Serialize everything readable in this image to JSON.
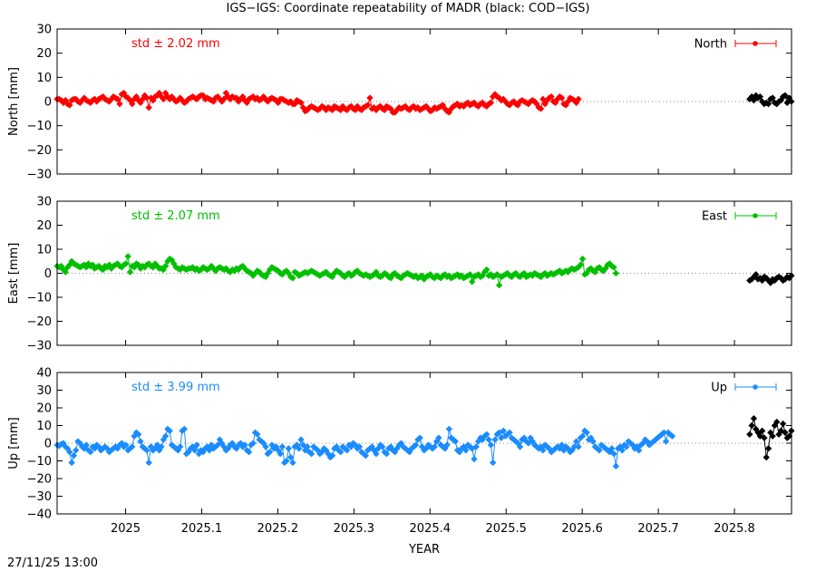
{
  "title": "IGS−IGS: Coordinate repeatability of MADR (black: COD−IGS)",
  "footer_timestamp": "27/11/25 13:00",
  "colors": {
    "north": "#ff0000",
    "east": "#00c000",
    "up": "#1a8cff",
    "compare": "#000000",
    "zero_line": "#888888"
  },
  "chart_data": [
    {
      "type": "line",
      "component": "North",
      "legend_label": "North",
      "legend_position": "top-right",
      "std_label": "std ± 2.02 mm",
      "ylabel": "North [mm]",
      "xlabel": "",
      "ylim": [
        -30,
        30
      ],
      "yticks": [
        30,
        20,
        10,
        0,
        -10,
        -20,
        -30
      ],
      "ytick_labels": [
        "30",
        "20",
        "10",
        "0",
        "−10",
        "−20",
        "−30"
      ],
      "xlim": [
        2024.91,
        2025.875
      ],
      "zero_line": true,
      "error_bars": true,
      "series": [
        {
          "name": "North",
          "color": "#ff0000",
          "x_start": 2024.91,
          "x_step": 0.00274,
          "values": [
            1,
            1,
            0.5,
            -0.5,
            0.5,
            -1,
            -1.5,
            0.5,
            1,
            1,
            0,
            -0.5,
            0.5,
            1.5,
            0.5,
            0,
            -0.5,
            0.5,
            1,
            0,
            1,
            1.5,
            2,
            1,
            0.5,
            0,
            1,
            2,
            1.5,
            1,
            -1,
            3,
            3.5,
            2,
            1.5,
            0.5,
            -1,
            1,
            2,
            0.5,
            -0.5,
            1,
            2.5,
            1.5,
            -2.5,
            1.5,
            0.5,
            2,
            2.5,
            3.5,
            2,
            1,
            3.5,
            2,
            1,
            2,
            1,
            0,
            0.5,
            1.5,
            0.5,
            -0.5,
            0,
            1,
            1.5,
            2,
            1.5,
            1,
            2,
            2.5,
            2.5,
            1,
            1.5,
            1,
            0.5,
            0,
            1.5,
            2,
            1,
            0,
            1,
            3.5,
            2,
            1,
            2,
            1.5,
            1.5,
            0,
            1,
            2,
            0.5,
            -0.5,
            1,
            1.5,
            2,
            1,
            1.5,
            0.5,
            1,
            2,
            1,
            0,
            1,
            1.5,
            1,
            0.5,
            -0.5,
            1,
            1,
            0.5,
            0,
            -0.5,
            0,
            -1,
            -1,
            0.5,
            0,
            -0.5,
            -2.5,
            -4,
            -3.5,
            -2.5,
            -2,
            -2.5,
            -3,
            -3.5,
            -3,
            -2,
            -2.5,
            -3.5,
            -2.5,
            -3,
            -3.5,
            -2,
            -2.5,
            -3,
            -3.5,
            -2,
            -3,
            -3.5,
            -2.5,
            -2,
            -3,
            -3.5,
            -2,
            -3,
            -3.5,
            -2.5,
            -2,
            -1.5,
            1.5,
            -3,
            -2.5,
            -3.5,
            -2.5,
            -2,
            -3,
            -3.5,
            -2,
            -2.5,
            -3,
            -4.5,
            -4.5,
            -3.5,
            -2.5,
            -3,
            -2.5,
            -2,
            -3,
            -3.5,
            -2.5,
            -2,
            -3,
            -2.5,
            -3.5,
            -3,
            -2.5,
            -2,
            -3,
            -4,
            -3.5,
            -2.5,
            -3,
            -2.5,
            -2,
            -1.5,
            -3,
            -4,
            -4.5,
            -3,
            -2,
            -1.5,
            -1,
            -2,
            -1.5,
            -2,
            -1,
            -0.5,
            -1.5,
            -1,
            -0.5,
            -1.5,
            -2,
            -1,
            -0.5,
            -1.5,
            -2,
            -1,
            -0.5,
            2,
            3,
            2,
            1.5,
            0.5,
            1,
            0,
            -1,
            -1.5,
            -0.5,
            0,
            -1,
            -1.5,
            0,
            0.5,
            0,
            -0.5,
            -1,
            0,
            0.5,
            0,
            -1,
            -2.5,
            -3,
            1,
            -1,
            0.5,
            1.5,
            2,
            0,
            -0.5,
            1,
            2,
            1.5,
            -1,
            -1.5,
            0,
            1.5,
            1,
            0.5,
            -0.5,
            1
          ]
        },
        {
          "name": "COD−IGS",
          "color": "#000000",
          "x_start": 2025.82,
          "x_step": 0.00274,
          "values": [
            1,
            2,
            0.5,
            2.5,
            1.5,
            2,
            0,
            -1,
            -0.5,
            -1,
            1,
            1.5,
            -0.5,
            -1,
            0,
            0.5,
            2,
            2.5,
            -0.5,
            1.5,
            0
          ]
        }
      ]
    },
    {
      "type": "line",
      "component": "East",
      "legend_label": "East",
      "legend_position": "top-right",
      "std_label": "std ± 2.07 mm",
      "ylabel": "East [mm]",
      "xlabel": "",
      "ylim": [
        -30,
        30
      ],
      "yticks": [
        30,
        20,
        10,
        0,
        -10,
        -20,
        -30
      ],
      "ytick_labels": [
        "30",
        "20",
        "10",
        "0",
        "−10",
        "−20",
        "−30"
      ],
      "xlim": [
        2024.91,
        2025.875
      ],
      "zero_line": true,
      "error_bars": true,
      "series": [
        {
          "name": "East",
          "color": "#00c000",
          "x_start": 2024.91,
          "x_step": 0.00274,
          "values": [
            3,
            2.5,
            3,
            1.5,
            0.5,
            2.5,
            3.5,
            5,
            4,
            3.5,
            3,
            2.5,
            3,
            3.5,
            2.5,
            4,
            3,
            3.5,
            2,
            2.5,
            3,
            2,
            1.5,
            3,
            2.5,
            3.5,
            2,
            3,
            3.5,
            4,
            3,
            2.5,
            3.5,
            4,
            7,
            0.5,
            3,
            2.5,
            4,
            3.5,
            2,
            3,
            2.5,
            3.5,
            4,
            3,
            2.5,
            4,
            3,
            2,
            2,
            1.5,
            3,
            5,
            6,
            5.5,
            4,
            2.5,
            2,
            1.5,
            2.5,
            2,
            1.5,
            2,
            2,
            2.5,
            1.5,
            2,
            1,
            1.5,
            2.5,
            2,
            1.5,
            2,
            3,
            2,
            1,
            2,
            2.5,
            2,
            1.5,
            2,
            1,
            0.5,
            1.5,
            1,
            2,
            1.5,
            2.5,
            3,
            2,
            1,
            0.5,
            0,
            -1,
            0,
            1,
            0.5,
            -0.5,
            -1,
            -1.5,
            0,
            1.5,
            2.5,
            2,
            1.5,
            1,
            0,
            -0.5,
            0.5,
            1,
            0,
            -1.5,
            -2,
            0.5,
            0,
            -1,
            -0.5,
            0,
            0.5,
            0,
            0.5,
            1,
            0.5,
            0,
            -0.5,
            -1,
            -0.5,
            0,
            0.5,
            -0.5,
            -1,
            -1.5,
            0,
            1,
            0.5,
            0,
            -1,
            -1.5,
            -0.5,
            0,
            -1,
            -0.5,
            0.5,
            1,
            0,
            -0.5,
            -1,
            -0.5,
            -1,
            -1.5,
            -1,
            -0.5,
            0.5,
            -1,
            -1.5,
            -1,
            0,
            -0.5,
            -1.5,
            -2,
            -0.5,
            0,
            -1,
            -1.5,
            -2,
            -1,
            -0.5,
            0,
            -0.5,
            -1,
            -1.5,
            -1,
            -2,
            -1.5,
            -1,
            -2.5,
            -1.5,
            -1,
            -0.5,
            -1.5,
            -2,
            -1,
            -1.5,
            -2,
            -1,
            -0.5,
            -1.5,
            -1,
            -2,
            -1.5,
            -1,
            -0.5,
            -1.5,
            -1,
            -2,
            -1.5,
            -1,
            -0.5,
            -3.5,
            -1.5,
            -1,
            -0.5,
            -1.5,
            -1,
            0.5,
            1.5,
            -1,
            -0.5,
            -1.5,
            -1,
            -0.5,
            -5,
            -1.5,
            -1,
            -0.5,
            0,
            -1,
            -1.5,
            -0.5,
            0,
            -1,
            -1.5,
            -0.5,
            0,
            -1.5,
            -1,
            -0.5,
            -1,
            0,
            -0.5,
            -1,
            -1.5,
            -0.5,
            0,
            -1,
            -0.5,
            0,
            -0.5,
            0,
            0.5,
            1,
            0,
            0.5,
            1,
            0.5,
            1.5,
            2,
            1.5,
            2,
            2.5,
            3.5,
            6,
            -0.5,
            0,
            1.5,
            2,
            1,
            0.5,
            2,
            2.5,
            1.5,
            1,
            2,
            3.5,
            4,
            3,
            2.5,
            0
          ]
        },
        {
          "name": "COD−IGS",
          "color": "#000000",
          "x_start": 2025.82,
          "x_step": 0.00274,
          "values": [
            -3,
            -2.5,
            -1.5,
            -0.5,
            -2.5,
            -2,
            -3,
            -1.5,
            -2,
            -3,
            -4,
            -2.5,
            -3,
            -2,
            -1.5,
            -2,
            -3,
            -2.5,
            -1.5,
            -2,
            -1
          ]
        }
      ]
    },
    {
      "type": "line",
      "component": "Up",
      "legend_label": "Up",
      "legend_position": "top-right",
      "std_label": "std ± 3.99 mm",
      "ylabel": "Up [mm]",
      "xlabel": "YEAR",
      "ylim": [
        -40,
        40
      ],
      "yticks": [
        40,
        30,
        20,
        10,
        0,
        -10,
        -20,
        -30,
        -40
      ],
      "ytick_labels": [
        "40",
        "30",
        "20",
        "10",
        "0",
        "−10",
        "−20",
        "−30",
        "−40"
      ],
      "xlim": [
        2024.91,
        2025.875
      ],
      "xticks": [
        2025,
        2025.1,
        2025.2,
        2025.3,
        2025.4,
        2025.5,
        2025.6,
        2025.7,
        2025.8
      ],
      "xtick_labels": [
        "2025",
        "2025.1",
        "2025.2",
        "2025.3",
        "2025.4",
        "2025.5",
        "2025.6",
        "2025.7",
        "2025.8"
      ],
      "zero_line": true,
      "error_bars": true,
      "series": [
        {
          "name": "Up",
          "color": "#1a8cff",
          "x_start": 2024.91,
          "x_step": 0.00274,
          "values": [
            -1,
            -1.5,
            -0.5,
            0,
            -2,
            -3,
            -5,
            -11,
            -7,
            -4,
            1,
            0,
            -2,
            -3,
            -1,
            -4,
            -5,
            -2,
            -3,
            -1,
            -2,
            -4,
            -3,
            -2,
            -3,
            -5,
            -4,
            -3,
            -2,
            -3,
            -1,
            0,
            -2,
            -1,
            -4,
            -3,
            -2,
            4,
            6,
            5,
            1,
            -2,
            -3,
            -4,
            -11,
            -2,
            -4,
            -3,
            -1,
            -4,
            -2,
            2,
            4,
            8,
            7,
            -1,
            -2,
            -3,
            -4,
            -2,
            7,
            8,
            -6,
            -5,
            -3,
            -2,
            -4,
            -1,
            -6,
            -4,
            -5,
            -3,
            -2,
            -4,
            -1,
            -3,
            -2,
            -1,
            2,
            0,
            -2,
            -4,
            -3,
            -1,
            0,
            -2,
            -3,
            -1,
            0,
            -2,
            -1,
            -4,
            -5,
            -1,
            0,
            6,
            5,
            2,
            1,
            0,
            -2,
            -6,
            -5,
            -1,
            -3,
            -2,
            -4,
            -6,
            -2,
            -11,
            -10,
            -3,
            -8,
            -11,
            -2,
            -1,
            -3,
            2,
            -1,
            -4,
            -2,
            -5,
            -6,
            -2,
            -3,
            -4,
            -6,
            -5,
            -3,
            -4,
            -6,
            -8,
            -7,
            -3,
            -2,
            -4,
            -5,
            -2,
            -3,
            -4,
            -1,
            -2,
            0,
            -1,
            -3,
            -2,
            -5,
            -6,
            -7,
            -4,
            -3,
            -2,
            -4,
            -6,
            -3,
            -1,
            -2,
            -5,
            -6,
            -3,
            -2,
            -4,
            -5,
            -3,
            -1,
            0,
            -2,
            -3,
            -4,
            -5,
            -3,
            -2,
            -1,
            2,
            3,
            -2,
            -4,
            -3,
            -1,
            -2,
            -3,
            -2,
            1,
            3,
            -1,
            -2,
            -3,
            -1,
            8,
            3,
            2,
            1,
            -4,
            -5,
            -3,
            -2,
            -4,
            -1,
            -2,
            -3,
            -9,
            -2,
            1,
            3,
            2,
            4,
            5,
            2,
            -1,
            -11,
            2,
            5,
            6,
            3,
            7,
            4,
            5,
            6,
            3,
            2,
            1,
            0,
            -2,
            2,
            3,
            1,
            0,
            3,
            1,
            -1,
            -2,
            -3,
            -2,
            -4,
            -1,
            -2,
            -3,
            -5,
            -4,
            -3,
            -2,
            -3,
            -1,
            -4,
            -2,
            -3,
            -5,
            -4,
            -2,
            1,
            -2,
            3,
            4,
            7,
            6,
            2,
            3,
            1,
            -2,
            -3,
            -4,
            -1,
            -2,
            -3,
            -4,
            -5,
            -3,
            -6,
            -13,
            -3,
            -2,
            -4,
            -1,
            -2,
            1,
            0,
            -1,
            -3,
            -2,
            -4,
            -1,
            0,
            2,
            1,
            -1,
            0,
            1,
            2,
            3,
            4,
            5,
            6,
            1,
            6,
            5,
            4
          ]
        },
        {
          "name": "COD−IGS",
          "color": "#000000",
          "x_start": 2025.82,
          "x_step": 0.00274,
          "values": [
            5,
            10,
            14,
            8,
            6,
            4,
            7,
            3,
            -8,
            -3,
            6,
            4,
            10,
            12,
            5,
            7,
            11,
            6,
            3,
            4,
            7
          ]
        }
      ]
    }
  ]
}
